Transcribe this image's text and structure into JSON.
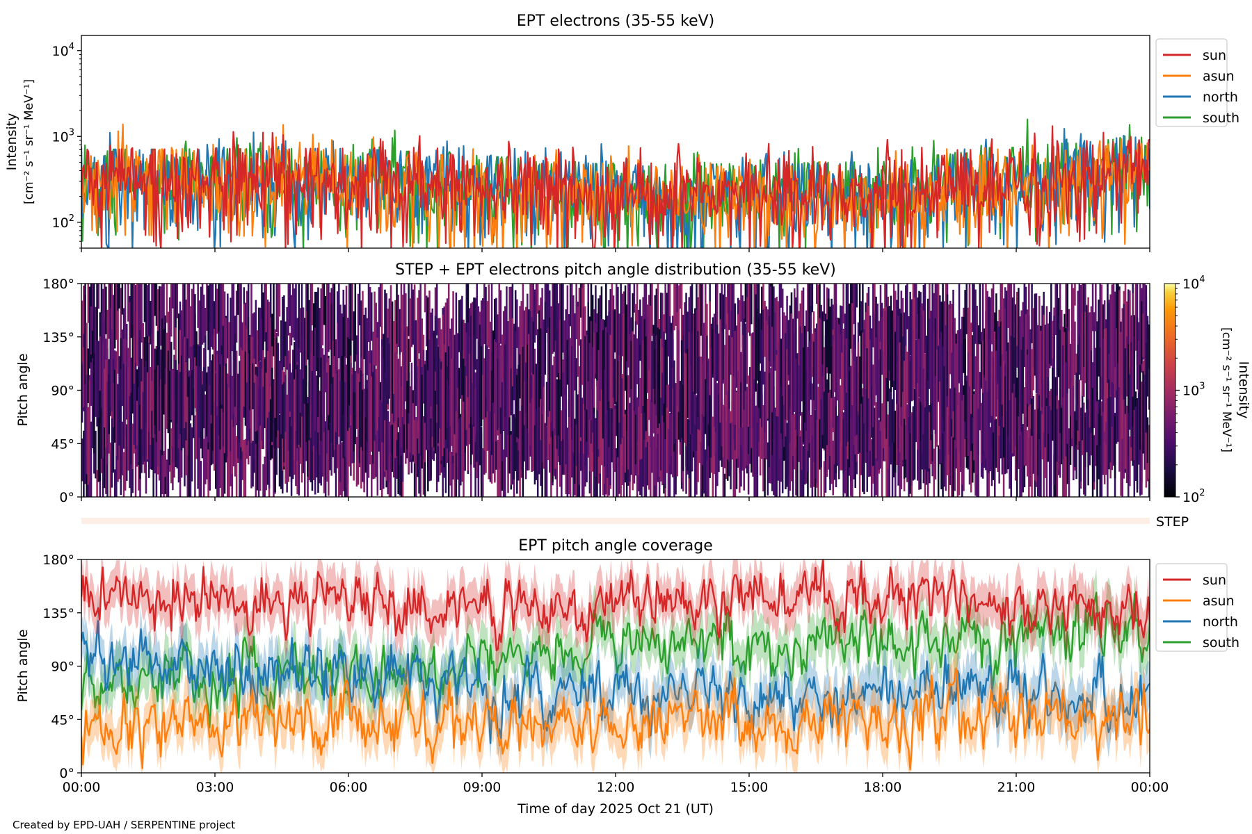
{
  "footer": "Created by EPD-UAH / SERPENTINE project",
  "xaxis": {
    "label": "Time of day 2025 Oct 21 (UT)",
    "ticks": [
      "00:00",
      "03:00",
      "06:00",
      "09:00",
      "12:00",
      "15:00",
      "18:00",
      "21:00",
      "00:00"
    ],
    "range_hours": [
      0,
      24
    ]
  },
  "colors": {
    "sun": "#d62728",
    "asun": "#ff7f0e",
    "north": "#1f77b4",
    "south": "#2ca02c"
  },
  "chart_data": [
    {
      "type": "line",
      "title": "EPT electrons (35-55 keV)",
      "ylabel": "Intensity",
      "yunits": "[cm⁻² s⁻¹ sr⁻¹ MeV⁻¹]",
      "yscale": "log",
      "ylim": [
        50,
        15000
      ],
      "yticks": [
        {
          "value": 100,
          "base": "10",
          "exp": "2"
        },
        {
          "value": 1000,
          "base": "10",
          "exp": "3"
        },
        {
          "value": 10000,
          "base": "10",
          "exp": "4"
        }
      ],
      "legend": [
        "sun",
        "asun",
        "north",
        "south"
      ],
      "legend_loc": "outside-right-top",
      "series_summary": [
        {
          "name": "sun",
          "typical": [
            [
              0,
              320
            ],
            [
              6,
              330
            ],
            [
              12,
              220
            ],
            [
              18,
              230
            ],
            [
              24,
              420
            ]
          ]
        },
        {
          "name": "asun",
          "typical": [
            [
              0,
              300
            ],
            [
              6,
              320
            ],
            [
              12,
              200
            ],
            [
              18,
              210
            ],
            [
              24,
              380
            ]
          ]
        },
        {
          "name": "north",
          "typical": [
            [
              0,
              320
            ],
            [
              6,
              330
            ],
            [
              12,
              210
            ],
            [
              18,
              220
            ],
            [
              24,
              420
            ]
          ]
        },
        {
          "name": "south",
          "typical": [
            [
              0,
              320
            ],
            [
              6,
              330
            ],
            [
              12,
              210
            ],
            [
              18,
              230
            ],
            [
              24,
              450
            ]
          ]
        }
      ]
    },
    {
      "type": "heatmap",
      "title": "STEP + EPT electrons pitch angle distribution (35-55 keV)",
      "ylabel": "Pitch angle",
      "yticks": [
        "0°",
        "45°",
        "90°",
        "135°",
        "180°"
      ],
      "ylim": [
        0,
        180
      ],
      "colorbar": {
        "label": "Intensity",
        "units": "[cm⁻² s⁻¹ sr⁻¹ MeV⁻¹]",
        "scale": "log",
        "range": [
          100,
          10000
        ],
        "ticks": [
          {
            "value": 100,
            "base": "10",
            "exp": "2"
          },
          {
            "value": 1000,
            "base": "10",
            "exp": "3"
          },
          {
            "value": 10000,
            "base": "10",
            "exp": "4"
          }
        ],
        "colormap": "inferno"
      },
      "step_label": "STEP"
    },
    {
      "type": "line",
      "title": "EPT pitch angle coverage",
      "ylabel": "Pitch angle",
      "yticks": [
        "0°",
        "45°",
        "90°",
        "135°",
        "180°"
      ],
      "ylim": [
        0,
        180
      ],
      "legend": [
        "sun",
        "asun",
        "north",
        "south"
      ],
      "legend_loc": "outside-right-top",
      "series_summary": [
        {
          "name": "sun",
          "typical": [
            [
              0,
              150
            ],
            [
              6,
              140
            ],
            [
              12,
              140
            ],
            [
              18,
              145
            ],
            [
              24,
              135
            ]
          ]
        },
        {
          "name": "asun",
          "typical": [
            [
              0,
              35
            ],
            [
              6,
              45
            ],
            [
              12,
              40
            ],
            [
              18,
              40
            ],
            [
              24,
              50
            ]
          ]
        },
        {
          "name": "north",
          "typical": [
            [
              0,
              100
            ],
            [
              6,
              80
            ],
            [
              12,
              60
            ],
            [
              18,
              70
            ],
            [
              24,
              60
            ]
          ]
        },
        {
          "name": "south",
          "typical": [
            [
              0,
              80
            ],
            [
              6,
              80
            ],
            [
              12,
              110
            ],
            [
              18,
              110
            ],
            [
              24,
              125
            ]
          ]
        }
      ]
    }
  ]
}
